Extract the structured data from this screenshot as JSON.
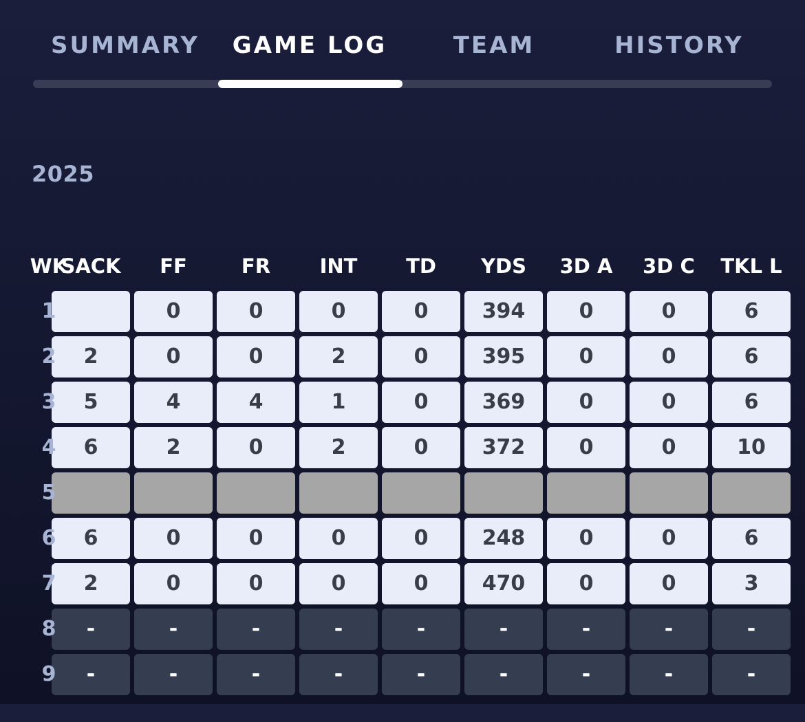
{
  "tabs": [
    {
      "label": "SUMMARY",
      "active": false
    },
    {
      "label": "GAME LOG",
      "active": true
    },
    {
      "label": "TEAM",
      "active": false
    },
    {
      "label": "HISTORY",
      "active": false
    }
  ],
  "season": "2025",
  "table": {
    "week_header": "WK",
    "columns": [
      "SACK",
      "FF",
      "FR",
      "INT",
      "TD",
      "YDS",
      "3D A",
      "3D C",
      "TKL L"
    ],
    "rows": [
      {
        "wk": "1",
        "status": "played",
        "values": [
          "",
          "0",
          "0",
          "0",
          "0",
          "394",
          "0",
          "0",
          "6"
        ]
      },
      {
        "wk": "2",
        "status": "played",
        "values": [
          "2",
          "0",
          "0",
          "2",
          "0",
          "395",
          "0",
          "0",
          "6"
        ]
      },
      {
        "wk": "3",
        "status": "played",
        "values": [
          "5",
          "4",
          "4",
          "1",
          "0",
          "369",
          "0",
          "0",
          "6"
        ]
      },
      {
        "wk": "4",
        "status": "played",
        "values": [
          "6",
          "2",
          "0",
          "2",
          "0",
          "372",
          "0",
          "0",
          "10"
        ]
      },
      {
        "wk": "5",
        "status": "bye",
        "values": [
          "",
          "",
          "",
          "",
          "",
          "",
          "",
          "",
          ""
        ]
      },
      {
        "wk": "6",
        "status": "played",
        "values": [
          "6",
          "0",
          "0",
          "0",
          "0",
          "248",
          "0",
          "0",
          "6"
        ]
      },
      {
        "wk": "7",
        "status": "played",
        "values": [
          "2",
          "0",
          "0",
          "0",
          "0",
          "470",
          "0",
          "0",
          "3"
        ]
      },
      {
        "wk": "8",
        "status": "future",
        "values": [
          "-",
          "-",
          "-",
          "-",
          "-",
          "-",
          "-",
          "-",
          "-"
        ]
      },
      {
        "wk": "9",
        "status": "future",
        "values": [
          "-",
          "-",
          "-",
          "-",
          "-",
          "-",
          "-",
          "-",
          "-"
        ]
      }
    ]
  }
}
